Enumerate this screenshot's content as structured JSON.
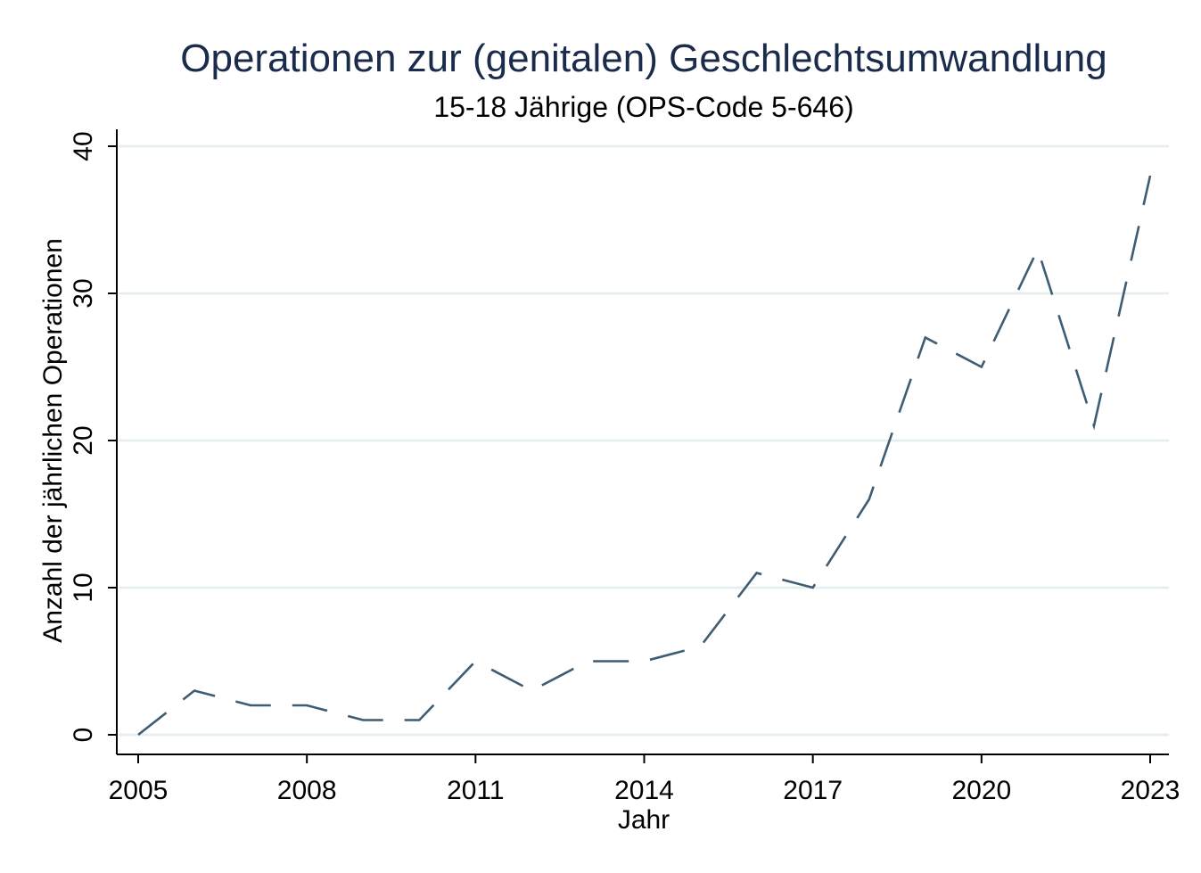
{
  "chart_data": {
    "type": "line",
    "title": "Operationen zur (genitalen) Geschlechtsumwandlung",
    "subtitle": "15-18 Jährige (OPS-Code 5-646)",
    "xlabel": "Jahr",
    "ylabel": "Anzahl der jährlichen Operationen",
    "xlim": [
      2005,
      2023
    ],
    "ylim": [
      0,
      40
    ],
    "xticks": [
      2005,
      2008,
      2011,
      2014,
      2017,
      2020,
      2023
    ],
    "yticks": [
      0,
      10,
      20,
      30,
      40
    ],
    "grid": "horizontal",
    "line_style": "dashed",
    "line_color": "#3e5c72",
    "x": [
      2005,
      2006,
      2007,
      2008,
      2009,
      2010,
      2011,
      2012,
      2013,
      2014,
      2015,
      2016,
      2017,
      2018,
      2019,
      2020,
      2021,
      2022,
      2023
    ],
    "series": [
      {
        "values": [
          0,
          3,
          2,
          2,
          1,
          1,
          5,
          3,
          5,
          5,
          6,
          11,
          10,
          16,
          27,
          25,
          33,
          21,
          38
        ]
      }
    ]
  }
}
